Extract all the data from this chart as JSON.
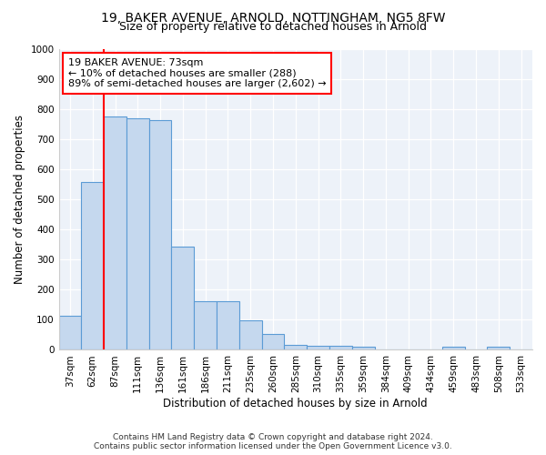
{
  "title1": "19, BAKER AVENUE, ARNOLD, NOTTINGHAM, NG5 8FW",
  "title2": "Size of property relative to detached houses in Arnold",
  "xlabel": "Distribution of detached houses by size in Arnold",
  "ylabel": "Number of detached properties",
  "categories": [
    "37sqm",
    "62sqm",
    "87sqm",
    "111sqm",
    "136sqm",
    "161sqm",
    "186sqm",
    "211sqm",
    "235sqm",
    "260sqm",
    "285sqm",
    "310sqm",
    "335sqm",
    "359sqm",
    "384sqm",
    "409sqm",
    "434sqm",
    "459sqm",
    "483sqm",
    "508sqm",
    "533sqm"
  ],
  "values": [
    112,
    558,
    775,
    770,
    765,
    343,
    163,
    163,
    98,
    52,
    18,
    14,
    14,
    10,
    0,
    0,
    0,
    10,
    0,
    10,
    0
  ],
  "bar_color": "#c5d8ee",
  "bar_edge_color": "#5b9bd5",
  "vline_x_index": 1.5,
  "vline_color": "red",
  "annotation_text": "19 BAKER AVENUE: 73sqm\n← 10% of detached houses are smaller (288)\n89% of semi-detached houses are larger (2,602) →",
  "annotation_box_color": "white",
  "annotation_box_edge": "red",
  "ylim": [
    0,
    1000
  ],
  "yticks": [
    0,
    100,
    200,
    300,
    400,
    500,
    600,
    700,
    800,
    900,
    1000
  ],
  "footer1": "Contains HM Land Registry data © Crown copyright and database right 2024.",
  "footer2": "Contains public sector information licensed under the Open Government Licence v3.0.",
  "bg_color": "#edf2f9",
  "title_fontsize": 10,
  "subtitle_fontsize": 9,
  "tick_fontsize": 7.5,
  "axis_label_fontsize": 8.5
}
